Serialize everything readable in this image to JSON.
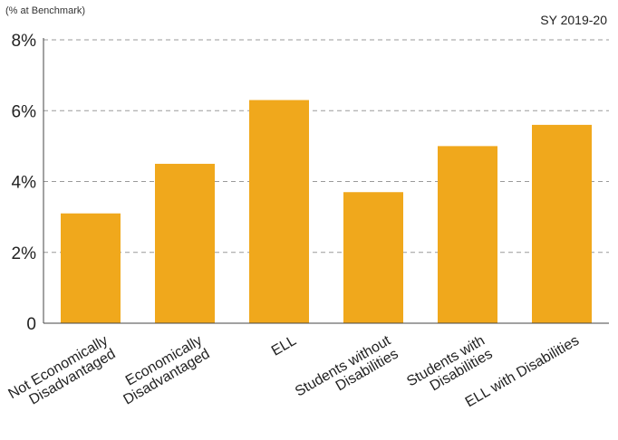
{
  "chart_data": {
    "type": "bar",
    "ylabel": "(% at Benchmark)",
    "subtitle": "SY 2019-20",
    "categories": [
      [
        "Not Economically",
        "Disadvantaged"
      ],
      [
        "Economically",
        "Disadvantaged"
      ],
      [
        "ELL"
      ],
      [
        "Students without",
        "Disabilities"
      ],
      [
        "Students with",
        "Disabilities"
      ],
      [
        "ELL with Disabilities"
      ]
    ],
    "values": [
      3.1,
      4.5,
      6.3,
      3.7,
      5.0,
      5.6
    ],
    "ylim": [
      0,
      8
    ],
    "yticks": [
      {
        "value": 0,
        "label": "0"
      },
      {
        "value": 2,
        "label": "2%"
      },
      {
        "value": 4,
        "label": "4%"
      },
      {
        "value": 6,
        "label": "6%"
      },
      {
        "value": 8,
        "label": "8%"
      }
    ],
    "grid": true,
    "colors": {
      "bar": "#F0A81C",
      "grid": "#9a9a9a",
      "axis": "#444444"
    }
  }
}
